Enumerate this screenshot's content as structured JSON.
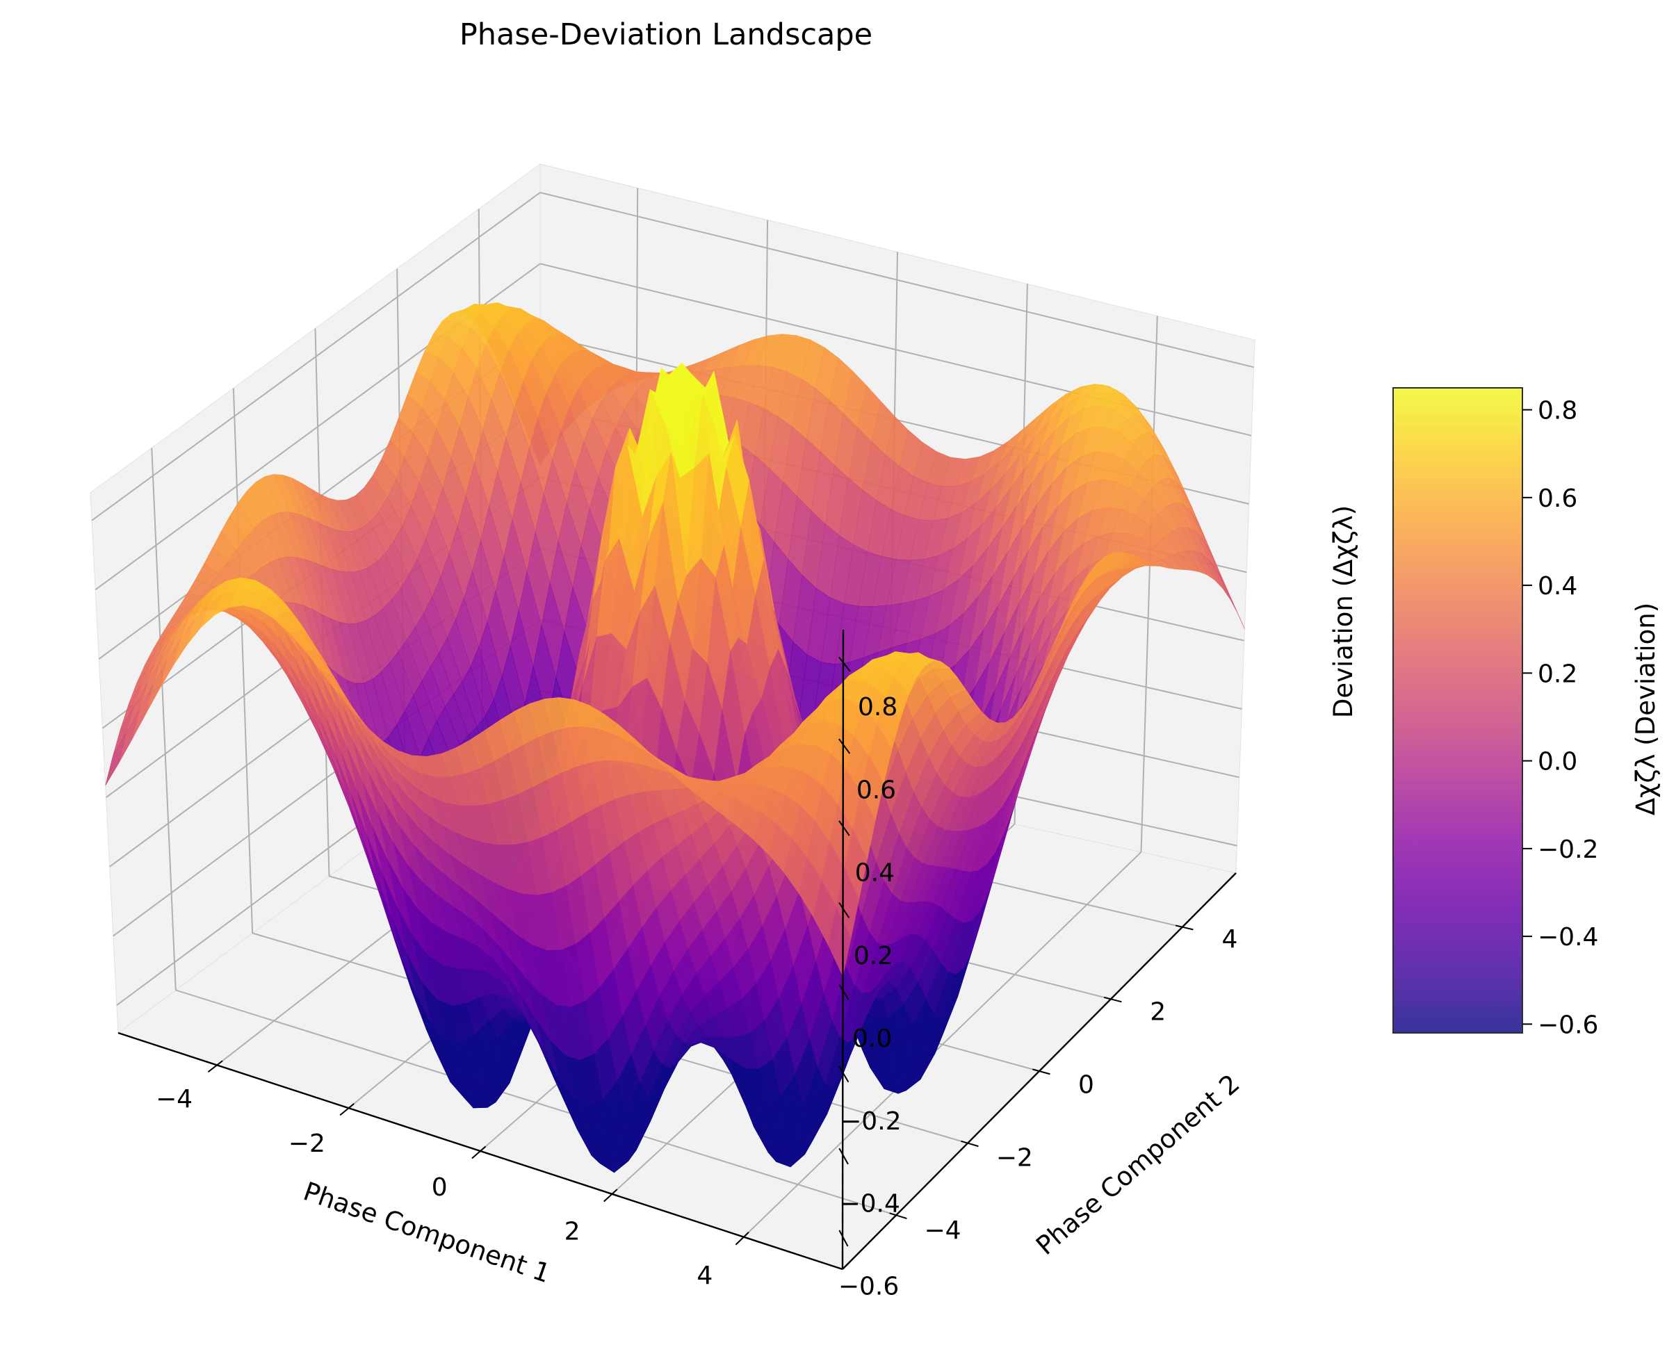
{
  "chart_data": {
    "type": "surface3d",
    "title": "Phase-Deviation Landscape",
    "xlabel": "Phase Component 1",
    "ylabel": "Phase Component 2",
    "zlabel": "Deviation (Δχζλ)",
    "xlim": [
      -5.5,
      5.5
    ],
    "ylim": [
      -5.5,
      5.5
    ],
    "zlim": [
      -0.68,
      0.88
    ],
    "xticks": [
      "−4",
      "−2",
      "0",
      "2",
      "4"
    ],
    "yticks": [
      "−4",
      "−2",
      "0",
      "2",
      "4"
    ],
    "zticks": [
      "−0.6",
      "−0.4",
      "−0.2",
      "0.0",
      "0.2",
      "0.4",
      "0.6",
      "0.8"
    ],
    "xtick_values": [
      -4,
      -2,
      0,
      2,
      4
    ],
    "ytick_values": [
      -4,
      -2,
      0,
      2,
      4
    ],
    "ztick_values": [
      -0.6,
      -0.4,
      -0.2,
      0.0,
      0.2,
      0.4,
      0.6,
      0.8
    ],
    "surface": {
      "description_formula": "z = cos(r) * exp(-0.1 r) * (1 + 0.25 sin(8 phi))",
      "grid_n": 50,
      "range": [
        -5.5,
        5.5
      ],
      "z_min": -0.62,
      "z_max": 0.85
    },
    "colorbar": {
      "label": "Δχζλ (Deviation)",
      "colormap": "plasma",
      "range": [
        -0.62,
        0.85
      ],
      "ticks": [
        "−0.6",
        "−0.4",
        "−0.2",
        "0.0",
        "0.2",
        "0.4",
        "0.6",
        "0.8"
      ],
      "tick_values": [
        -0.6,
        -0.4,
        -0.2,
        0.0,
        0.2,
        0.4,
        0.6,
        0.8
      ]
    },
    "grid": true,
    "pane_color": "#f2f2f2",
    "grid_color": "#b0b0b0"
  }
}
